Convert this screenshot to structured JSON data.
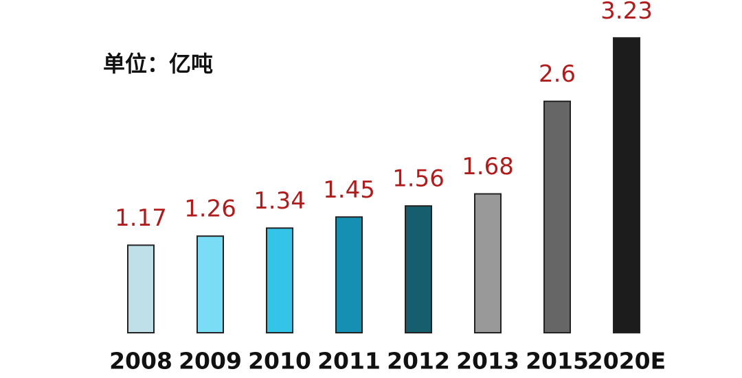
{
  "chart_data": {
    "type": "bar",
    "subtitle": "单位：亿吨",
    "categories": [
      "2008",
      "2009",
      "2010",
      "2011",
      "2012",
      "2013",
      "2015",
      "2020E"
    ],
    "values": [
      1.17,
      1.26,
      1.34,
      1.45,
      1.56,
      1.68,
      2.6,
      3.23
    ],
    "colors": [
      "#bfe0e8",
      "#7adcf5",
      "#33c4e8",
      "#1590b3",
      "#155e6e",
      "#999999",
      "#666666",
      "#1c1c1c"
    ],
    "label_color": "#b01c1c",
    "ylim": [
      0.3,
      3.3
    ]
  }
}
